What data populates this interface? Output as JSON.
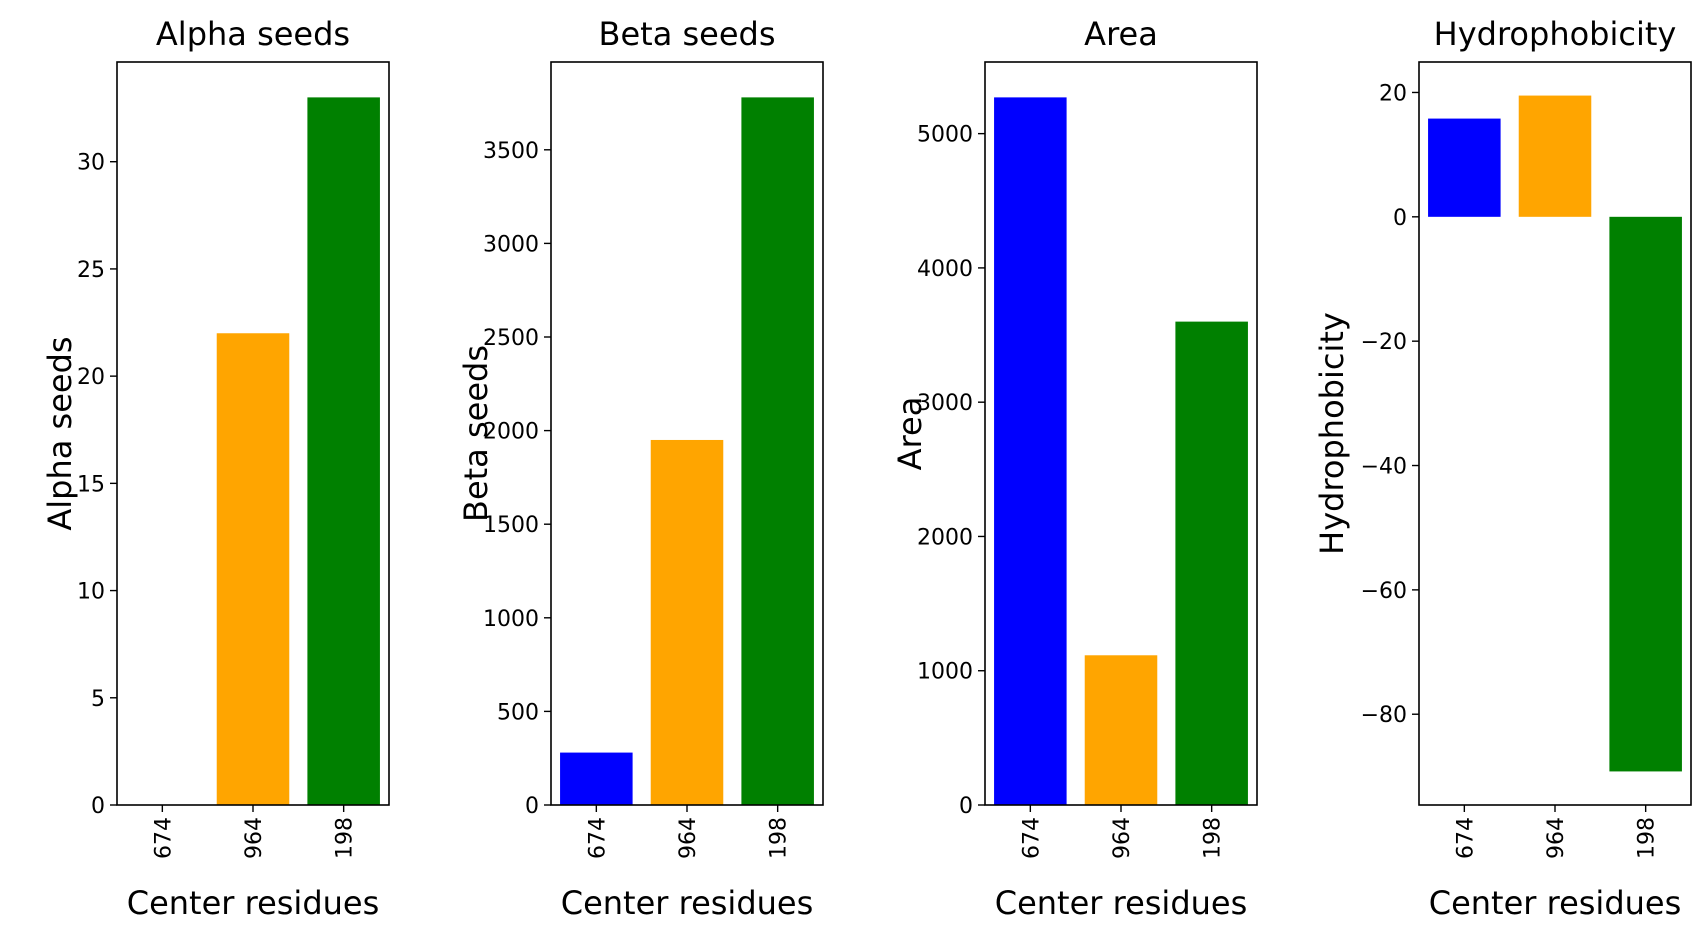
{
  "chart_data": [
    {
      "type": "bar",
      "title": "Alpha seeds",
      "xlabel": "Center residues",
      "ylabel": "Alpha seeds",
      "categories": [
        "674",
        "964",
        "198"
      ],
      "values": [
        0,
        22,
        33
      ],
      "colors": [
        "#0000ff",
        "#ffa500",
        "#008000"
      ],
      "ylim": [
        0,
        34.65
      ],
      "yticks": [
        0,
        5,
        10,
        15,
        20,
        25,
        30
      ],
      "grid": false
    },
    {
      "type": "bar",
      "title": "Beta seeds",
      "xlabel": "Center residues",
      "ylabel": "Beta seeds",
      "categories": [
        "674",
        "964",
        "198"
      ],
      "values": [
        280,
        1950,
        3780
      ],
      "colors": [
        "#0000ff",
        "#ffa500",
        "#008000"
      ],
      "ylim": [
        0,
        3969
      ],
      "yticks": [
        0,
        500,
        1000,
        1500,
        2000,
        2500,
        3000,
        3500
      ],
      "grid": false
    },
    {
      "type": "bar",
      "title": "Area",
      "xlabel": "Center residues",
      "ylabel": "Area",
      "categories": [
        "674",
        "964",
        "198"
      ],
      "values": [
        5270,
        1115,
        3600
      ],
      "colors": [
        "#0000ff",
        "#ffa500",
        "#008000"
      ],
      "ylim": [
        0,
        5533.5
      ],
      "yticks": [
        0,
        1000,
        2000,
        3000,
        4000,
        5000
      ],
      "grid": false
    },
    {
      "type": "bar",
      "title": "Hydrophobicity",
      "xlabel": "Center residues",
      "ylabel": "Hydrophobicity",
      "categories": [
        "674",
        "964",
        "198"
      ],
      "values": [
        15.8,
        19.5,
        -89.2
      ],
      "colors": [
        "#0000ff",
        "#ffa500",
        "#008000"
      ],
      "ylim": [
        -94.6,
        24.9
      ],
      "yticks": [
        -80,
        -60,
        -40,
        -20,
        0,
        20
      ],
      "grid": false
    }
  ]
}
